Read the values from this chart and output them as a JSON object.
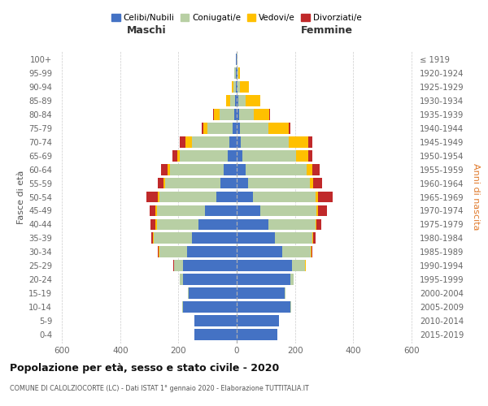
{
  "age_groups": [
    "0-4",
    "5-9",
    "10-14",
    "15-19",
    "20-24",
    "25-29",
    "30-34",
    "35-39",
    "40-44",
    "45-49",
    "50-54",
    "55-59",
    "60-64",
    "65-69",
    "70-74",
    "75-79",
    "80-84",
    "85-89",
    "90-94",
    "95-99",
    "100+"
  ],
  "birth_years": [
    "2015-2019",
    "2010-2014",
    "2005-2009",
    "2000-2004",
    "1995-1999",
    "1990-1994",
    "1985-1989",
    "1980-1984",
    "1975-1979",
    "1970-1974",
    "1965-1969",
    "1960-1964",
    "1955-1959",
    "1950-1954",
    "1945-1949",
    "1940-1944",
    "1935-1939",
    "1930-1934",
    "1925-1929",
    "1920-1924",
    "≤ 1919"
  ],
  "maschi": {
    "celibi": [
      145,
      145,
      185,
      165,
      185,
      185,
      170,
      155,
      130,
      110,
      70,
      55,
      45,
      30,
      25,
      15,
      8,
      5,
      4,
      3,
      2
    ],
    "coniugati": [
      0,
      0,
      1,
      2,
      10,
      30,
      95,
      130,
      145,
      165,
      195,
      190,
      185,
      165,
      130,
      85,
      50,
      18,
      8,
      4,
      1
    ],
    "vedovi": [
      0,
      0,
      0,
      0,
      0,
      1,
      2,
      3,
      5,
      5,
      5,
      5,
      8,
      8,
      20,
      15,
      20,
      12,
      5,
      1,
      0
    ],
    "divorziati": [
      0,
      0,
      0,
      0,
      0,
      2,
      5,
      5,
      15,
      20,
      40,
      20,
      22,
      18,
      20,
      5,
      2,
      0,
      0,
      0,
      0
    ]
  },
  "femmine": {
    "nubili": [
      140,
      145,
      185,
      165,
      185,
      190,
      155,
      130,
      110,
      80,
      55,
      40,
      30,
      20,
      15,
      10,
      8,
      5,
      3,
      2,
      1
    ],
    "coniugate": [
      0,
      0,
      1,
      2,
      10,
      45,
      100,
      130,
      160,
      195,
      215,
      210,
      210,
      185,
      165,
      100,
      50,
      25,
      8,
      3,
      1
    ],
    "vedove": [
      0,
      0,
      0,
      0,
      0,
      1,
      2,
      3,
      5,
      5,
      10,
      12,
      20,
      40,
      65,
      70,
      55,
      50,
      30,
      5,
      0
    ],
    "divorziate": [
      0,
      0,
      0,
      0,
      0,
      1,
      3,
      8,
      15,
      30,
      50,
      30,
      25,
      15,
      15,
      5,
      2,
      1,
      0,
      0,
      0
    ]
  },
  "colors": {
    "celibi": "#4472c4",
    "coniugati": "#b8cfa4",
    "vedovi": "#ffc000",
    "divorziati": "#c0292a"
  },
  "xlim": 620,
  "title": "Popolazione per età, sesso e stato civile - 2020",
  "subtitle": "COMUNE DI CALOLZIOCORTE (LC) - Dati ISTAT 1° gennaio 2020 - Elaborazione TUTTITALIA.IT",
  "xlabel_left": "Maschi",
  "xlabel_right": "Femmine",
  "ylabel_left": "Fasce di età",
  "ylabel_right": "Anni di nascita",
  "bg_color": "#ffffff",
  "grid_color": "#cccccc"
}
